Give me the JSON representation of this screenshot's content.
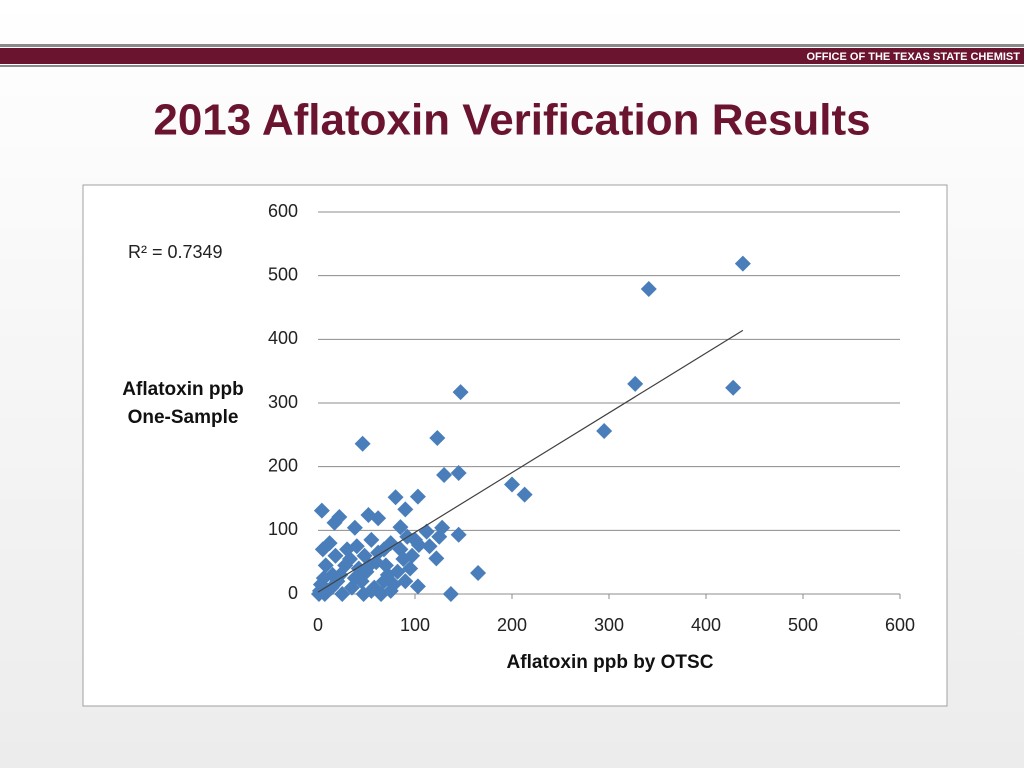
{
  "header": {
    "org": "OFFICE OF THE TEXAS STATE CHEMIST",
    "title": "2013 Aflatoxin Verification Results"
  },
  "chart_data": {
    "type": "scatter",
    "annotation": "R² = 0.7349",
    "x_label": "Aflatoxin ppb by OTSC",
    "y_label": [
      "Aflatoxin ppb",
      "One-Sample"
    ],
    "xlim": [
      0,
      600
    ],
    "ylim": [
      0,
      600
    ],
    "xticks": [
      0,
      100,
      200,
      300,
      400,
      500,
      600
    ],
    "yticks": [
      0,
      100,
      200,
      300,
      400,
      500,
      600
    ],
    "grid": true,
    "color": "#4a7ebb",
    "trendline": {
      "color": "#404040",
      "x": [
        0,
        438
      ],
      "y": [
        3,
        414
      ]
    },
    "series": [
      {
        "x": [
          438,
          341,
          147,
          327,
          428,
          295,
          123,
          46,
          130,
          145,
          200,
          213,
          80,
          103,
          4,
          22,
          52,
          62,
          17,
          38,
          90,
          85,
          112,
          145,
          128,
          125,
          104,
          122,
          165,
          103,
          137,
          95,
          88,
          75,
          68,
          55,
          60,
          48,
          42,
          30,
          12,
          5,
          8,
          15,
          3,
          10,
          20,
          25,
          35,
          45,
          58,
          65,
          72,
          78,
          50,
          28,
          18,
          6,
          2,
          14,
          40,
          33,
          62,
          70,
          85,
          92,
          100,
          115,
          55,
          68,
          82,
          1,
          7,
          23,
          38,
          47,
          53,
          75,
          90,
          97
        ],
        "y": [
          519,
          479,
          317,
          330,
          324,
          256,
          245,
          236,
          187,
          190,
          172,
          156,
          152,
          153,
          131,
          121,
          124,
          119,
          112,
          104,
          133,
          105,
          98,
          93,
          104,
          90,
          77,
          56,
          33,
          12,
          0,
          40,
          55,
          80,
          70,
          85,
          50,
          60,
          40,
          70,
          80,
          70,
          45,
          30,
          15,
          5,
          20,
          0,
          10,
          20,
          10,
          0,
          30,
          15,
          35,
          45,
          60,
          25,
          5,
          10,
          75,
          55,
          65,
          45,
          70,
          90,
          85,
          75,
          5,
          20,
          35,
          0,
          0,
          30,
          25,
          0,
          45,
          5,
          20,
          60
        ]
      }
    ]
  }
}
